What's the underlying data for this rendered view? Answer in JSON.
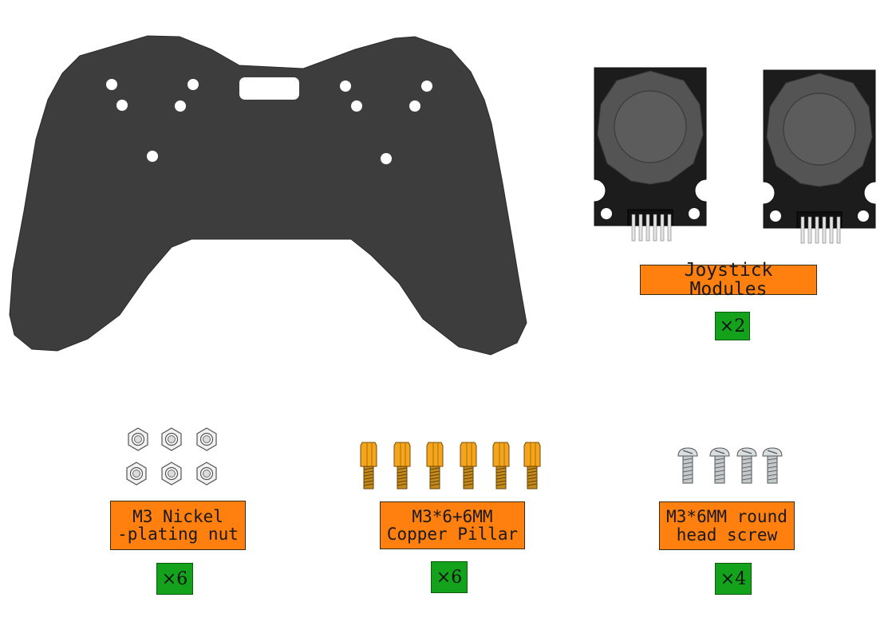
{
  "parts": [
    {
      "id": "controller-plate",
      "label": "",
      "quantity": ""
    },
    {
      "id": "joystick-modules",
      "label": "Joystick Modules",
      "quantity": "×2"
    },
    {
      "id": "nickel-nut",
      "label": "M3 Nickel\n-plating nut",
      "quantity": "×6"
    },
    {
      "id": "copper-pillar",
      "label": "M3*6+6MM\nCopper Pillar",
      "quantity": "×6"
    },
    {
      "id": "round-head-screw",
      "label": "M3*6MM round\nhead screw",
      "quantity": "×4"
    }
  ],
  "colors": {
    "label_bg": "#ff7f0f",
    "qty_bg": "#14a11c",
    "plate": "#3d3d3d",
    "copper": "#f0a020"
  }
}
